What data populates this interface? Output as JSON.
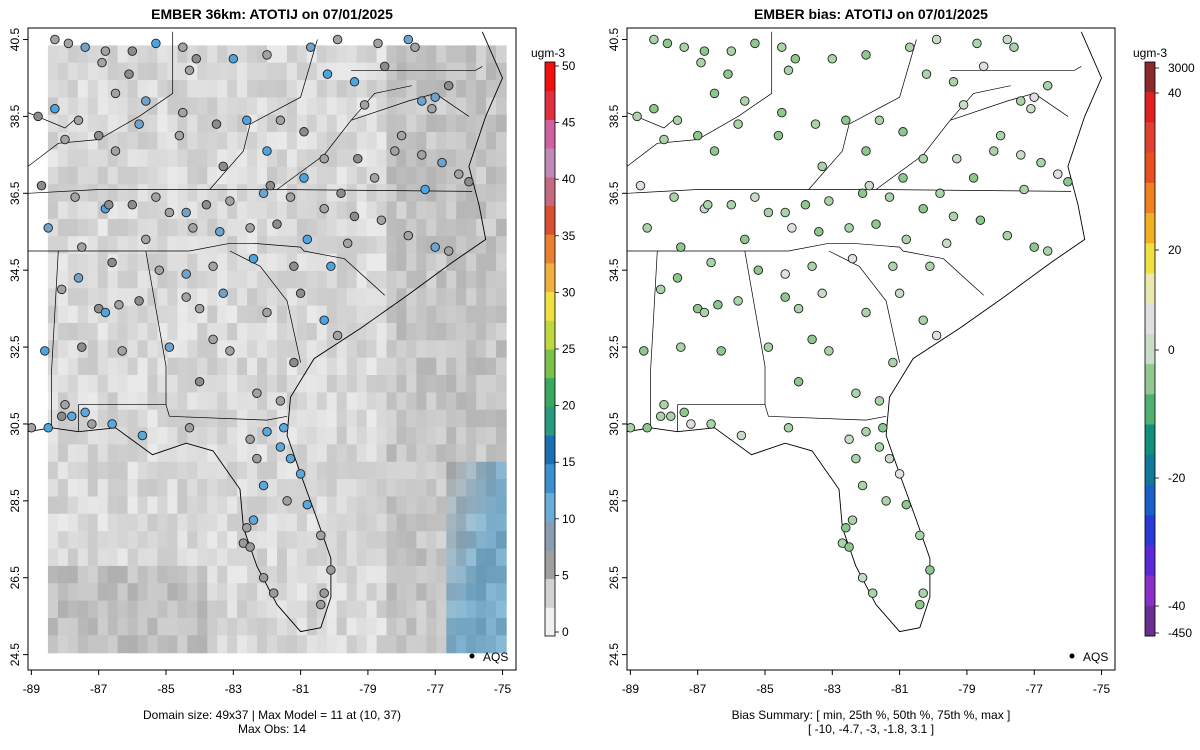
{
  "left_panel": {
    "title": "EMBER 36km: ATOTIJ on 07/01/2025",
    "footer_line1": "Domain size: 49x37 | Max Model = 11 at (10, 37)",
    "footer_line2": "Max Obs: 14",
    "legend_marker_label": "AQS",
    "colorbar": {
      "unit": "ugm-3",
      "ticks": [
        "0",
        "5",
        "10",
        "15",
        "20",
        "25",
        "30",
        "35",
        "40",
        "45",
        "50"
      ],
      "colors": [
        "#f0f0f0",
        "#d2d2d2",
        "#a0a0a0",
        "#8c9cb0",
        "#6aacd8",
        "#3c90d0",
        "#1a70b0",
        "#2a9a80",
        "#3aa860",
        "#7cc04c",
        "#c0d840",
        "#f0e040",
        "#f0b040",
        "#e88030",
        "#d85030",
        "#c46a80",
        "#c08ab8",
        "#d060a0",
        "#e03040",
        "#f01010"
      ]
    }
  },
  "right_panel": {
    "title": "EMBER bias: ATOTIJ on 07/01/2025",
    "footer_line1": "Bias Summary: [ min, 25th %, 50th %, 75th %, max ]",
    "footer_line2": "[ -10,   -4.7,   -3,   -1.8,   3.1 ]",
    "legend_marker_label": "AQS",
    "colorbar": {
      "unit": "ugm-3",
      "ticks": [
        "3000",
        "40",
        "20",
        "0",
        "-20",
        "-40",
        "-450"
      ],
      "colors": [
        "#8b2a2a",
        "#e02020",
        "#e04030",
        "#e85020",
        "#f08020",
        "#f0b020",
        "#f0e040",
        "#e8e8b0",
        "#e0e0e0",
        "#c8dcc8",
        "#90c890",
        "#50b070",
        "#10907a",
        "#107898",
        "#1a60c8",
        "#2a3ad8",
        "#5a2ad8",
        "#8a30c8",
        "#6a3090"
      ]
    }
  },
  "axes": {
    "lon_ticks": [
      "-89",
      "-87",
      "-85",
      "-83",
      "-81",
      "-79",
      "-77",
      "-75"
    ],
    "lat_ticks": [
      "24.5",
      "26.5",
      "28.5",
      "30.5",
      "32.5",
      "34.5",
      "36.5",
      "38.5",
      "40.5"
    ]
  }
}
